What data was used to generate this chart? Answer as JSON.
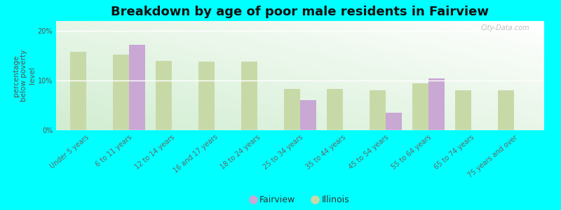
{
  "title": "Breakdown by age of poor male residents in Fairview",
  "ylabel": "percentage\nbelow poverty\nlevel",
  "background_color": "#00ffff",
  "plot_bg_top": "#f5fff5",
  "plot_bg_bottom": "#d8f0d8",
  "categories": [
    "Under 5 years",
    "6 to 11 years",
    "12 to 14 years",
    "16 and 17 years",
    "18 to 24 years",
    "25 to 34 years",
    "35 to 44 years",
    "45 to 54 years",
    "55 to 64 years",
    "65 to 74 years",
    "75 years and over"
  ],
  "fairview": [
    null,
    17.2,
    null,
    null,
    null,
    6.0,
    null,
    3.5,
    10.5,
    null,
    null
  ],
  "illinois": [
    15.8,
    15.3,
    14.0,
    13.8,
    13.8,
    8.3,
    8.3,
    8.0,
    9.5,
    8.0,
    8.0
  ],
  "fairview_color": "#c9a8d4",
  "illinois_color": "#c8d9a8",
  "ylim": [
    0,
    22
  ],
  "yticks": [
    0,
    10,
    20
  ],
  "ytick_labels": [
    "0%",
    "10%",
    "20%"
  ],
  "bar_width": 0.38,
  "title_fontsize": 13,
  "axis_label_fontsize": 7.5,
  "tick_fontsize": 7,
  "legend_fontsize": 9,
  "watermark": "City-Data.com"
}
